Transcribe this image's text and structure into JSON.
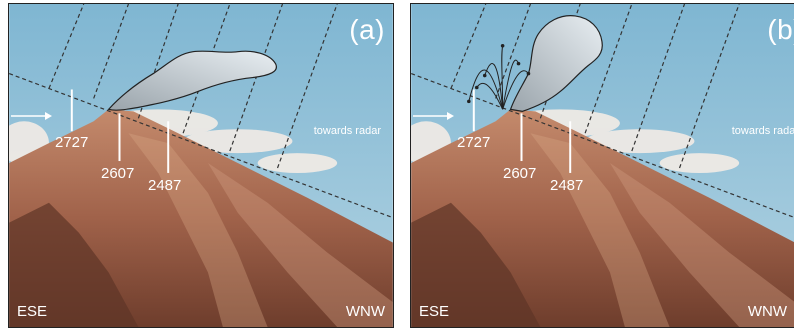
{
  "panels": [
    {
      "label": "(a)",
      "elevations": [
        "2727",
        "2607",
        "2487"
      ],
      "direction_left": "ESE",
      "direction_right": "WNW",
      "radar_label": "towards radar"
    },
    {
      "label": "(b)",
      "elevations": [
        "2727",
        "2607",
        "2487"
      ],
      "direction_left": "ESE",
      "direction_right": "WNW",
      "radar_label": "towards radar"
    }
  ],
  "colors": {
    "sky": "#8fc3db",
    "mountain": "#a86a4e",
    "plume_fill": "#c9d2d8",
    "lines": "#333333"
  }
}
